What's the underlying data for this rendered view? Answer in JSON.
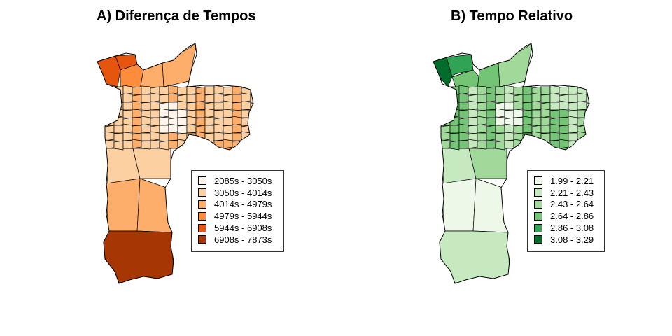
{
  "panels": [
    {
      "title": "A) Diferença de Tempos",
      "legend": [
        {
          "label": "2085s - 3050s",
          "color": "#fff5eb"
        },
        {
          "label": "3050s - 4014s",
          "color": "#fdd0a2"
        },
        {
          "label": "4014s - 4979s",
          "color": "#fdae6b"
        },
        {
          "label": "4979s - 5944s",
          "color": "#fd8d3c"
        },
        {
          "label": "5944s - 6908s",
          "color": "#e6550d"
        },
        {
          "label": "6908s - 7873s",
          "color": "#a63603"
        }
      ]
    },
    {
      "title": "B) Tempo Relativo",
      "legend": [
        {
          "label": "1.99 - 2.21",
          "color": "#edf8e9"
        },
        {
          "label": "2.21 - 2.43",
          "color": "#c7e9c0"
        },
        {
          "label": "2.43 - 2.64",
          "color": "#a1d99b"
        },
        {
          "label": "2.64 - 2.86",
          "color": "#74c476"
        },
        {
          "label": "2.86 - 3.08",
          "color": "#31a354"
        },
        {
          "label": "3.08 - 3.29",
          "color": "#006d2c"
        }
      ]
    }
  ]
}
